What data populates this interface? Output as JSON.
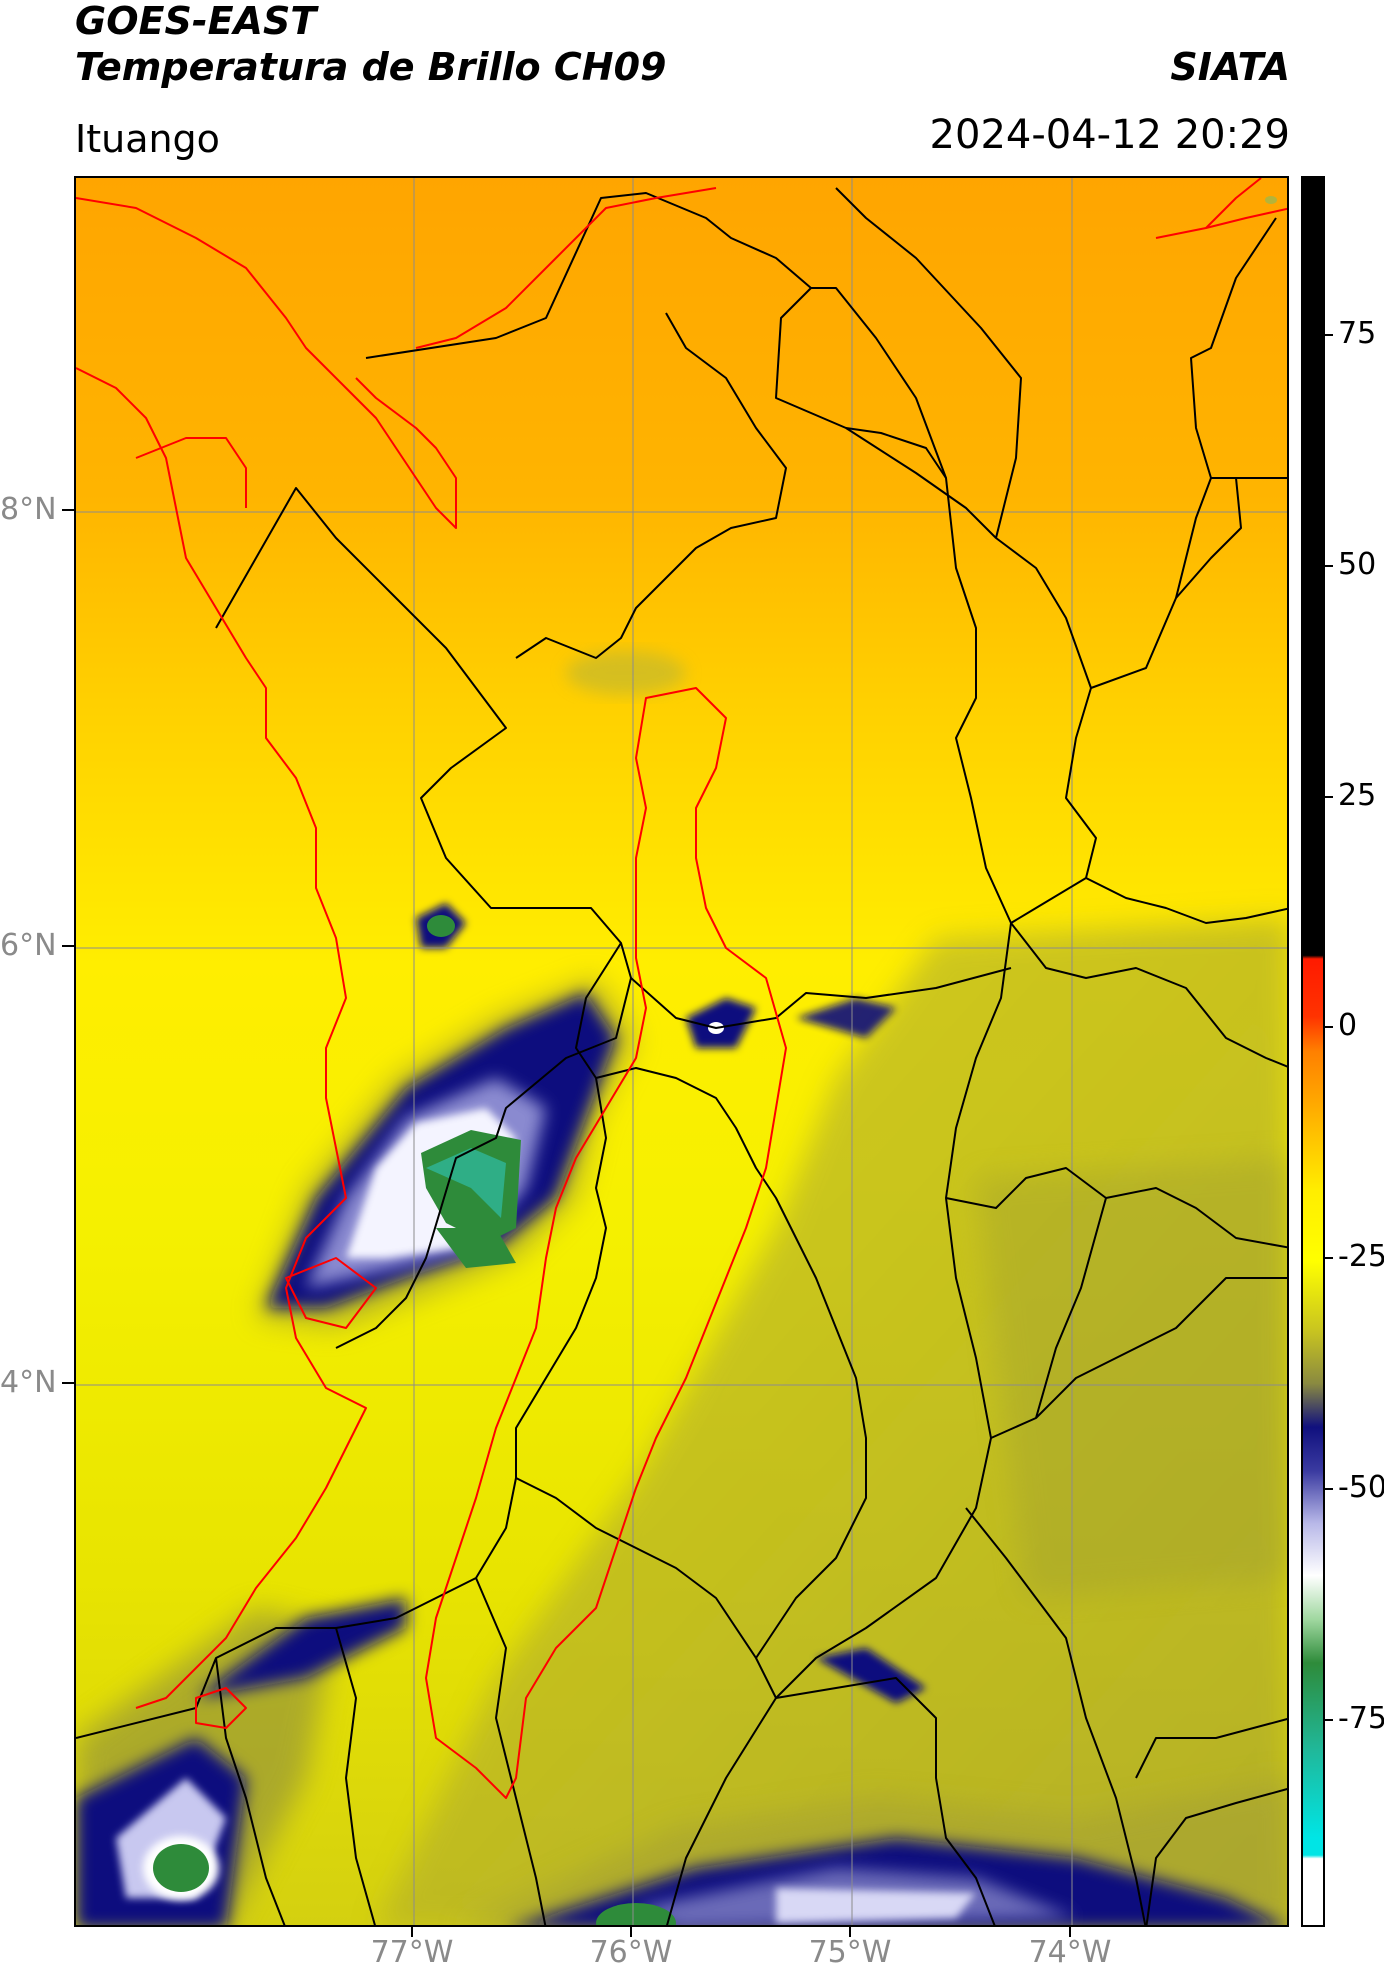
{
  "header": {
    "title_line1": "GOES-EAST",
    "title_line2": "Temperatura de Brillo CH09",
    "brand": "SIATA",
    "region": "Ituango",
    "timestamp": "2024-04-12 20:29"
  },
  "axes": {
    "lat_labels": [
      "8°N",
      "6°N",
      "4°N"
    ],
    "lon_labels": [
      "77°W",
      "76°W",
      "75°W",
      "74°W"
    ]
  },
  "colorbar": {
    "tick_labels": [
      "75",
      "50",
      "25",
      "0",
      "-25",
      "-50",
      "-75"
    ],
    "range": [
      -90,
      90
    ],
    "colors": {
      "black_top": "#000000",
      "red": "#ff1a00",
      "orange": "#ffa000",
      "yellow": "#ffff00",
      "olive": "#9a9a35",
      "navy": "#10107e",
      "lavender": "#b8b8e8",
      "white": "#ffffff",
      "green": "#2e8b3a",
      "teal": "#20b89a",
      "cyan": "#00e5e5"
    }
  },
  "map_colors": {
    "land_border": "#000000",
    "coast_basin": "#ff0000",
    "graticule": "#8c8c8c"
  }
}
